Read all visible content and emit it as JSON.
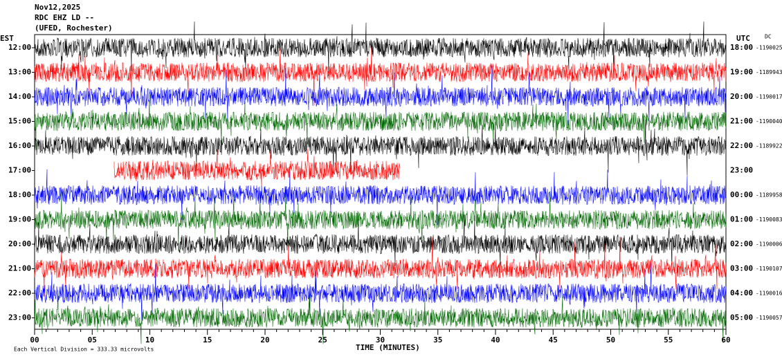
{
  "header": {
    "date": "Nov12,2025",
    "station": "RDC EHZ LD --",
    "location": "(UFED, Rochester)"
  },
  "left_axis": {
    "title": "EST",
    "labels": [
      "12:00",
      "13:00",
      "14:00",
      "15:00",
      "16:00",
      "17:00",
      "18:00",
      "19:00",
      "20:00",
      "21:00",
      "22:00",
      "23:00"
    ]
  },
  "right_axis": {
    "title": "UTC",
    "dc_title": "DC",
    "rows": [
      {
        "time": "18:00",
        "dc": "-1190025"
      },
      {
        "time": "19:00",
        "dc": "-1189943"
      },
      {
        "time": "20:00",
        "dc": "-1190017"
      },
      {
        "time": "21:00",
        "dc": "-1190040"
      },
      {
        "time": "22:00",
        "dc": "-1189922"
      },
      {
        "time": "23:00"
      },
      {
        "time": "00:00",
        "dc": "-1189958"
      },
      {
        "time": "01:00",
        "dc": "-1190083"
      },
      {
        "time": "02:00",
        "dc": "-1190006"
      },
      {
        "time": "03:00",
        "dc": "-1190107"
      },
      {
        "time": "04:00",
        "dc": "-1190016"
      },
      {
        "time": "05:00",
        "dc": "-1190057"
      }
    ]
  },
  "x_axis": {
    "title": "TIME (MINUTES)",
    "ticks": [
      "00",
      "05",
      "10",
      "15",
      "20",
      "25",
      "30",
      "35",
      "40",
      "45",
      "50",
      "55",
      "60"
    ]
  },
  "footer": "Each Vertical Division =  333.33 microvolts"
}
